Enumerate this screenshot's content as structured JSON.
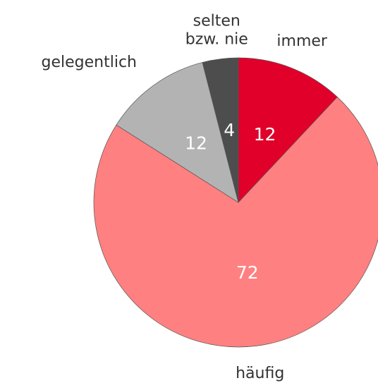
{
  "chart_data": {
    "type": "pie",
    "categories": [
      "immer",
      "häufig",
      "gelegentlich",
      "selten\nbzw. nie"
    ],
    "values": [
      12,
      72,
      12,
      4
    ],
    "colors": [
      "#e0002a",
      "#ff8080",
      "#b3b3b3",
      "#4d4d4d"
    ]
  }
}
